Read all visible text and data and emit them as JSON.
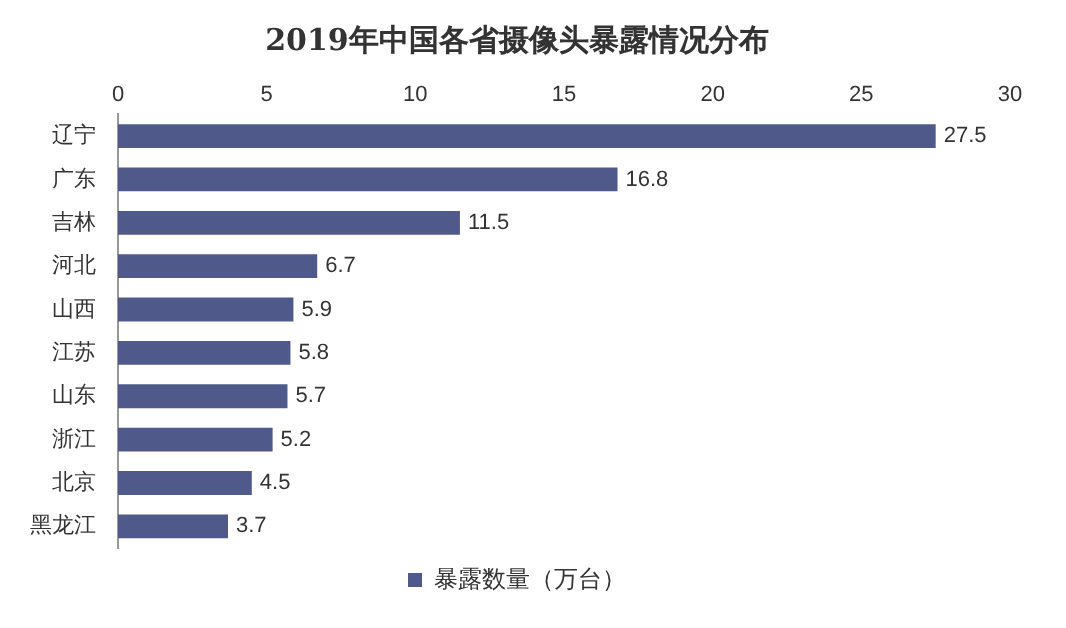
{
  "chart_data": {
    "type": "bar",
    "orientation": "horizontal",
    "title": "2019年中国各省摄像头暴露情况分布",
    "categories": [
      "辽宁",
      "广东",
      "吉林",
      "河北",
      "山西",
      "江苏",
      "山东",
      "浙江",
      "北京",
      "黑龙江"
    ],
    "series": [
      {
        "name": "暴露数量（万台）",
        "color": "#4f5a8a",
        "values": [
          27.5,
          16.8,
          11.5,
          6.7,
          5.9,
          5.8,
          5.7,
          5.2,
          4.5,
          3.7
        ]
      }
    ],
    "xlim": [
      0,
      30
    ],
    "xticks": [
      0,
      5,
      10,
      15,
      20,
      25,
      30
    ],
    "grid": false,
    "legend": "bottom",
    "data_labels": true
  }
}
